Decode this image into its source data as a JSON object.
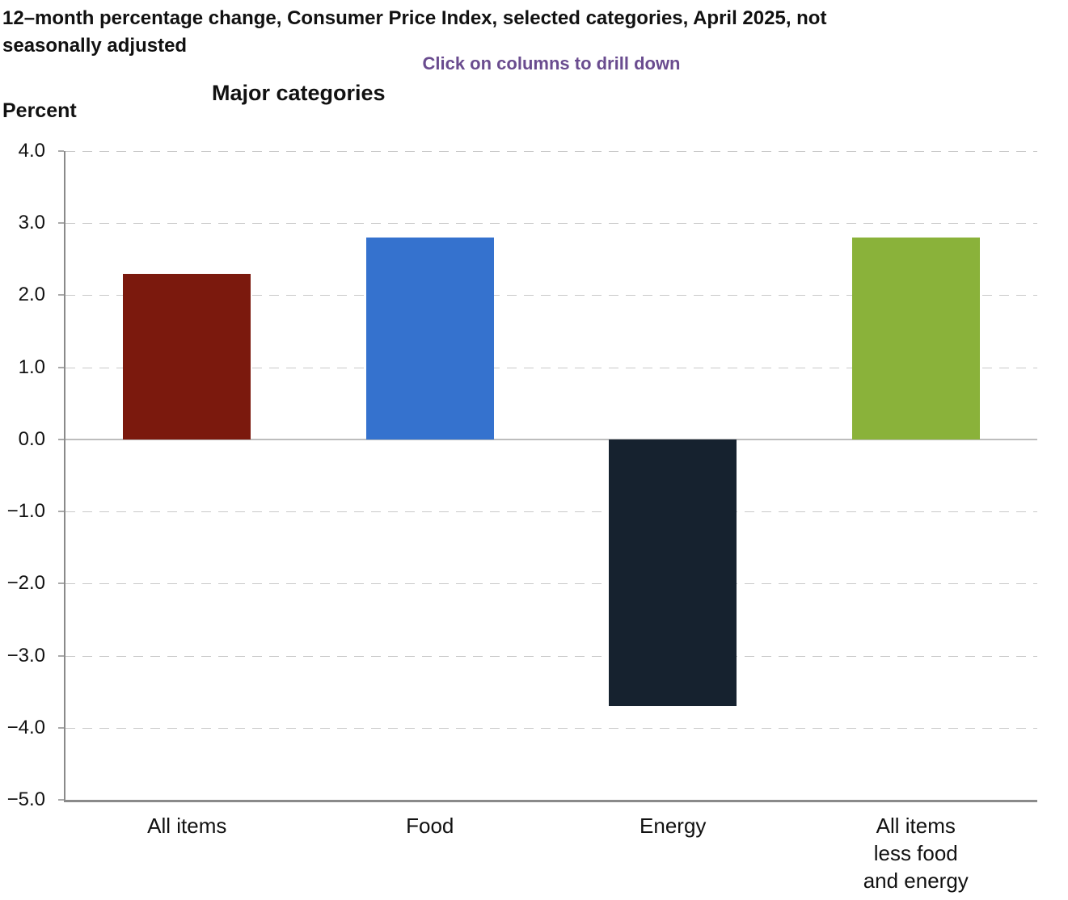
{
  "header": {
    "title_lines": [
      "12–month percentage change, Consumer Price Index, selected categories, April 2025, not",
      "seasonally adjusted"
    ],
    "subtitle": "Click on columns to drill down",
    "subtitle_color": "#6a4c8f"
  },
  "chart_data": {
    "type": "bar",
    "title": "Major categories",
    "ylabel": "Percent",
    "categories": [
      "All items",
      "Food",
      "Energy",
      "All items less food and energy"
    ],
    "category_display": [
      "All items",
      "Food",
      "Energy",
      "All items\nless food\nand energy"
    ],
    "values": [
      2.3,
      2.8,
      -3.7,
      2.8
    ],
    "bar_colors": [
      "#7b190d",
      "#3572ce",
      "#16222f",
      "#8ab23a"
    ],
    "ylim": [
      -5,
      4
    ],
    "ytick_values": [
      4,
      3,
      2,
      1,
      0,
      -1,
      -2,
      -3,
      -4,
      -5
    ],
    "ytick_labels": [
      "4.0",
      "3.0",
      "2.0",
      "1.0",
      "0.0",
      "−1.0",
      "−2.0",
      "−3.0",
      "−4.0",
      "−5.0"
    ],
    "grid": "horizontal dashed gridlines, solid zero line",
    "legend": "none",
    "bars_clickable": true
  }
}
